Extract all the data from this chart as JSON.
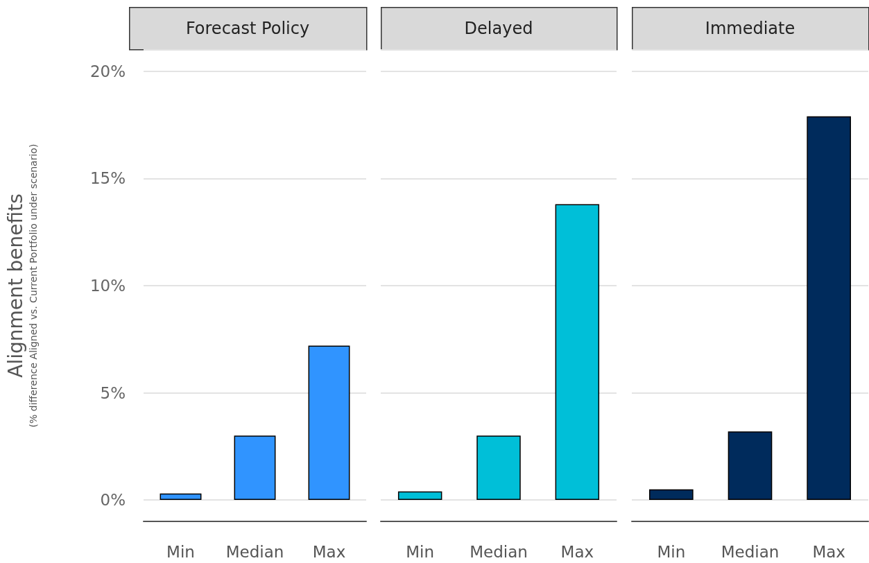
{
  "chart_data": [
    {
      "type": "bar",
      "title": "Forecast Policy",
      "ylabel": "Alignment benefits\n(% difference Aligned vs. Current Portfolio under scenario)",
      "categories": [
        "Min",
        "Median",
        "Max"
      ],
      "values": [
        0.3,
        3.0,
        7.2
      ],
      "color": "#3094ff",
      "ylim": [
        -1,
        21
      ],
      "yticks": [
        {
          "value": 0,
          "label": "0%"
        },
        {
          "value": 5,
          "label": "5%"
        },
        {
          "value": 10,
          "label": "10%"
        },
        {
          "value": 15,
          "label": "15%"
        },
        {
          "value": 20,
          "label": "20%"
        }
      ],
      "grid": "y"
    },
    {
      "type": "bar",
      "title": "Delayed",
      "categories": [
        "Min",
        "Median",
        "Max"
      ],
      "values": [
        0.4,
        3.0,
        13.8
      ],
      "color": "#00bfd8",
      "ylim": [
        -1,
        21
      ],
      "yticks": [
        {
          "value": 0,
          "label": null
        },
        {
          "value": 5,
          "label": null
        },
        {
          "value": 10,
          "label": null
        },
        {
          "value": 15,
          "label": null
        },
        {
          "value": 20,
          "label": null
        }
      ],
      "grid": "y",
      "tick_labels": "x"
    },
    {
      "type": "bar",
      "title": "Immediate",
      "categories": [
        "Min",
        "Median",
        "Max"
      ],
      "values": [
        0.5,
        3.2,
        17.9
      ],
      "color": "#002b5c",
      "ylim": [
        -1,
        21
      ],
      "yticks": [
        {
          "value": 0,
          "label": null
        },
        {
          "value": 5,
          "label": null
        },
        {
          "value": 10,
          "label": null
        },
        {
          "value": 15,
          "label": null
        },
        {
          "value": 20,
          "label": null
        }
      ],
      "grid": "y",
      "tick_labels": "x"
    }
  ]
}
